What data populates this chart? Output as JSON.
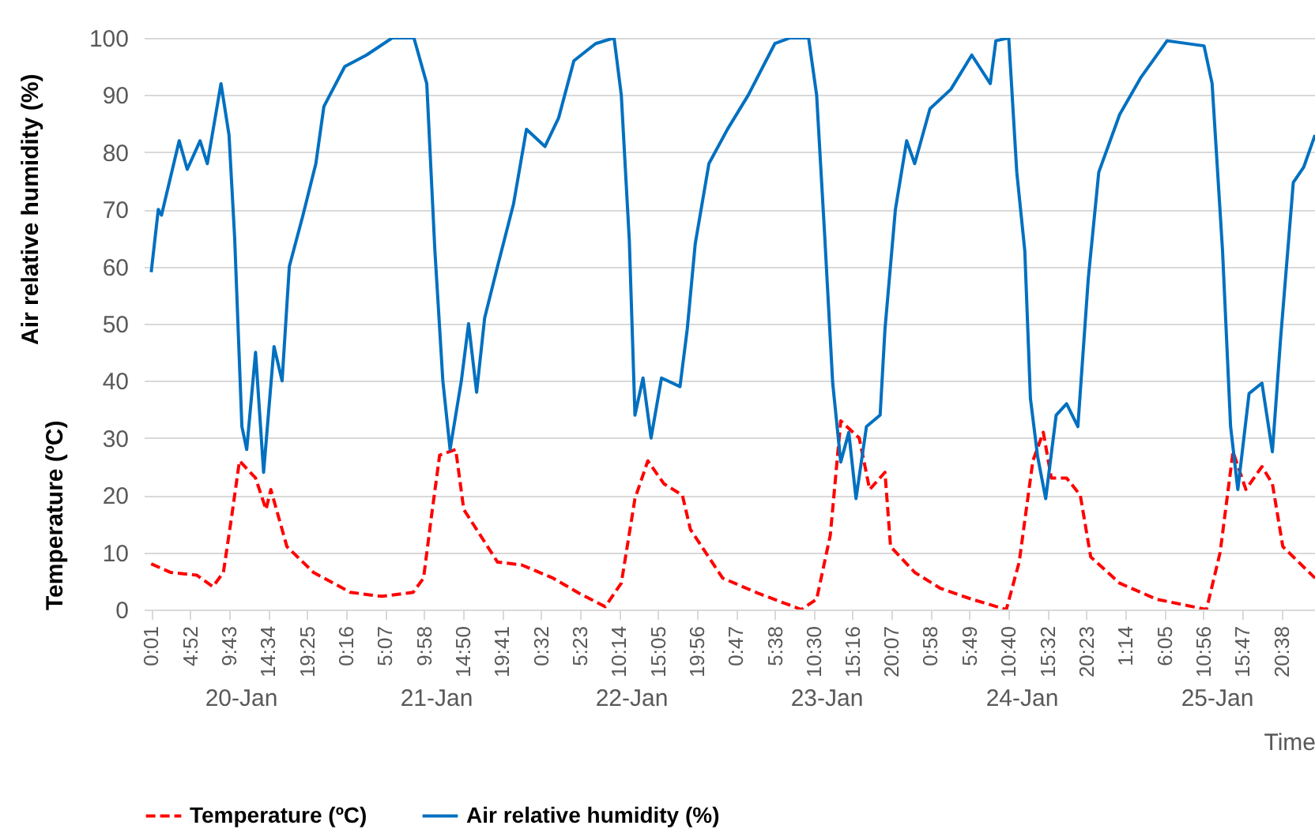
{
  "chart_data": {
    "type": "line",
    "xlabel": "Time",
    "ylabel": "Temperature (ºC)",
    "annotations": [
      "Air relative humidity (%)",
      "20-Jan",
      "21-Jan",
      "22-Jan",
      "23-Jan",
      "24-Jan",
      "25-Jan"
    ],
    "xlim": [
      "--01-19T23:06",
      "--01-26T00:48"
    ],
    "xticks": [
      {
        "value": "--01-20T00:01",
        "label": "0:01"
      },
      {
        "value": "--01-20T04:52",
        "label": "4:52"
      },
      {
        "value": "--01-20T09:43",
        "label": "9:43"
      },
      {
        "value": "--01-20T14:34",
        "label": "14:34"
      },
      {
        "value": "--01-20T19:25",
        "label": "19:25"
      },
      {
        "value": "--01-21T00:16",
        "label": "0:16"
      },
      {
        "value": "--01-21T05:07",
        "label": "5:07"
      },
      {
        "value": "--01-21T09:58",
        "label": "9:58"
      },
      {
        "value": "--01-21T14:50",
        "label": "14:50"
      },
      {
        "value": "--01-21T19:41",
        "label": "19:41"
      },
      {
        "value": "--01-22T00:32",
        "label": "0:32"
      },
      {
        "value": "--01-22T05:23",
        "label": "5:23"
      },
      {
        "value": "--01-22T10:14",
        "label": "10:14"
      },
      {
        "value": "--01-22T15:05",
        "label": "15:05"
      },
      {
        "value": "--01-22T19:56",
        "label": "19:56"
      },
      {
        "value": "--01-23T00:47",
        "label": "0:47"
      },
      {
        "value": "--01-23T05:38",
        "label": "5:38"
      },
      {
        "value": "--01-23T10:30",
        "label": "10:30"
      },
      {
        "value": "--01-23T15:16",
        "label": "15:16"
      },
      {
        "value": "--01-23T20:07",
        "label": "20:07"
      },
      {
        "value": "--01-24T00:58",
        "label": "0:58"
      },
      {
        "value": "--01-24T05:49",
        "label": "5:49"
      },
      {
        "value": "--01-24T10:40",
        "label": "10:40"
      },
      {
        "value": "--01-24T15:32",
        "label": "15:32"
      },
      {
        "value": "--01-24T20:23",
        "label": "20:23"
      },
      {
        "value": "--01-25T01:14",
        "label": "1:14"
      },
      {
        "value": "--01-25T06:05",
        "label": "6:05"
      },
      {
        "value": "--01-25T10:56",
        "label": "10:56"
      },
      {
        "value": "--01-25T15:47",
        "label": "15:47"
      },
      {
        "value": "--01-25T20:38",
        "label": "20:38"
      }
    ],
    "ylim": [
      0,
      100
    ],
    "yticks": [
      0,
      10,
      20,
      30,
      40,
      50,
      60,
      70,
      80,
      90,
      100
    ],
    "grid": "y",
    "legend": "bottom",
    "series": [
      {
        "name": "Temperature (ºC)",
        "color": "#ff0000",
        "line_style": "dashed",
        "x": [
          "--01-20T00:01",
          "--01-20T02:24",
          "--01-20T05:42",
          "--01-20T07:42",
          "--01-20T09:00",
          "--01-20T10:00",
          "--01-20T11:00",
          "--01-20T13:00",
          "--01-20T14:18",
          "--01-20T14:54",
          "--01-20T16:54",
          "--01-20T20:12",
          "--01-21T00:48",
          "--01-21T04:42",
          "--01-21T08:36",
          "--01-21T09:54",
          "--01-21T10:54",
          "--01-21T11:54",
          "--01-21T13:54",
          "--01-21T14:54",
          "--01-21T16:30",
          "--01-21T19:06",
          "--01-21T22:06",
          "--01-22T02:00",
          "--01-22T05:18",
          "--01-22T08:30",
          "--01-22T10:30",
          "--01-22T12:12",
          "--01-22T13:48",
          "--01-22T15:48",
          "--01-22T18:06",
          "--01-22T19:06",
          "--01-22T23:06",
          "--01-23T03:36",
          "--01-23T08:54",
          "--01-23T10:48",
          "--01-23T12:30",
          "--01-23T13:48",
          "--01-23T16:06",
          "--01-23T17:24",
          "--01-23T19:18",
          "--01-23T20:00",
          "--01-23T23:00",
          "--01-24T02:12",
          "--01-24T06:06",
          "--01-24T10:24",
          "--01-24T12:00",
          "--01-24T13:42",
          "--01-24T15:00",
          "--01-24T16:00",
          "--01-24T17:54",
          "--01-24T19:36",
          "--01-24T20:54",
          "--01-25T00:30",
          "--01-25T05:06",
          "--01-25T11:18",
          "--01-25T13:00",
          "--01-25T14:36",
          "--01-25T16:12",
          "--01-25T18:12",
          "--01-25T19:30",
          "--01-25T20:48",
          "--01-26T00:48"
        ],
        "values": [
          8,
          6.5,
          6,
          4,
          6.5,
          16,
          26,
          23,
          17.5,
          21,
          11,
          6.5,
          3,
          2.3,
          3,
          5.5,
          16.5,
          27,
          28,
          17.5,
          14,
          8.3,
          7.8,
          5.5,
          2.8,
          0.5,
          4.6,
          19.4,
          26,
          22,
          20,
          14,
          5.5,
          2.8,
          0,
          1.8,
          13,
          33,
          30,
          21,
          24,
          11,
          6.5,
          3.7,
          1.8,
          0,
          8.3,
          26,
          31,
          23,
          23,
          20,
          9.2,
          4.6,
          1.8,
          0,
          10,
          27.6,
          21,
          25,
          22,
          11,
          5.5
        ]
      },
      {
        "name": "Air relative humidity (%)",
        "color": "#0070c0",
        "line_style": "solid",
        "x": [
          "--01-20T00:01",
          "--01-20T00:54",
          "--01-20T01:18",
          "--01-20T03:30",
          "--01-20T04:30",
          "--01-20T06:06",
          "--01-20T07:00",
          "--01-20T08:42",
          "--01-20T09:42",
          "--01-20T10:24",
          "--01-20T11:18",
          "--01-20T11:54",
          "--01-20T13:00",
          "--01-20T14:00",
          "--01-20T15:18",
          "--01-20T16:18",
          "--01-20T17:12",
          "--01-20T18:54",
          "--01-20T20:30",
          "--01-20T21:30",
          "--01-21T00:06",
          "--01-21T02:48",
          "--01-21T06:00",
          "--01-21T08:42",
          "--01-21T10:18",
          "--01-21T11:18",
          "--01-21T12:18",
          "--01-21T13:12",
          "--01-21T14:36",
          "--01-21T15:30",
          "--01-21T16:30",
          "--01-21T17:30",
          "--01-21T19:06",
          "--01-21T21:06",
          "--01-21T22:42",
          "--01-22T01:00",
          "--01-22T02:42",
          "--01-22T04:36",
          "--01-22T07:18",
          "--01-22T09:36",
          "--01-22T10:30",
          "--01-22T11:30",
          "--01-22T12:12",
          "--01-22T13:12",
          "--01-22T14:12",
          "--01-22T15:30",
          "--01-22T17:48",
          "--01-22T18:42",
          "--01-22T19:42",
          "--01-22T21:24",
          "--01-22T23:42",
          "--01-23T02:18",
          "--01-23T05:36",
          "--01-23T07:30",
          "--01-23T09:48",
          "--01-23T10:48",
          "--01-23T11:48",
          "--01-23T12:48",
          "--01-23T13:48",
          "--01-23T14:48",
          "--01-23T15:42",
          "--01-23T17:00",
          "--01-23T18:42",
          "--01-23T19:18",
          "--01-23T20:36",
          "--01-23T22:00",
          "--01-23T23:00",
          "--01-24T00:54",
          "--01-24T03:30",
          "--01-24T06:06",
          "--01-24T08:24",
          "--01-24T09:06",
          "--01-24T10:42",
          "--01-24T11:42",
          "--01-24T12:42",
          "--01-24T13:24",
          "--01-24T14:18",
          "--01-24T15:18",
          "--01-24T16:36",
          "--01-24T17:54",
          "--01-24T19:18",
          "--01-24T20:36",
          "--01-24T21:54",
          "--01-25T00:30",
          "--01-25T03:06",
          "--01-25T06:24",
          "--01-25T11:00",
          "--01-25T12:00",
          "--01-25T13:18",
          "--01-25T14:18",
          "--01-25T15:12",
          "--01-25T16:36",
          "--01-25T18:12",
          "--01-25T19:30",
          "--01-25T20:30",
          "--01-25T22:06",
          "--01-25T23:24",
          "--01-26T00:48"
        ],
        "values": [
          59,
          70,
          69,
          82,
          77,
          82,
          78,
          92,
          83,
          65,
          32,
          28,
          45,
          24,
          46,
          40,
          60,
          69,
          78,
          88,
          95,
          97,
          100,
          100,
          92,
          63,
          40,
          28,
          40,
          50,
          38,
          51,
          60,
          71,
          84,
          81,
          86,
          96,
          99,
          100,
          90,
          64.5,
          34,
          40.5,
          30,
          40.5,
          39,
          49,
          64,
          78,
          84,
          90,
          99,
          100,
          100,
          90,
          65.5,
          39.6,
          25.8,
          31,
          19.4,
          32,
          34,
          49,
          70,
          82,
          78,
          87.6,
          91,
          97,
          92,
          99.5,
          100,
          76.5,
          62.7,
          36.9,
          26.7,
          19.4,
          34,
          36,
          32,
          58,
          76.5,
          86.6,
          93,
          99.5,
          98.6,
          92,
          62.7,
          32,
          21,
          37.8,
          39.6,
          27.6,
          47,
          74.7,
          77.4,
          83
        ]
      }
    ]
  }
}
